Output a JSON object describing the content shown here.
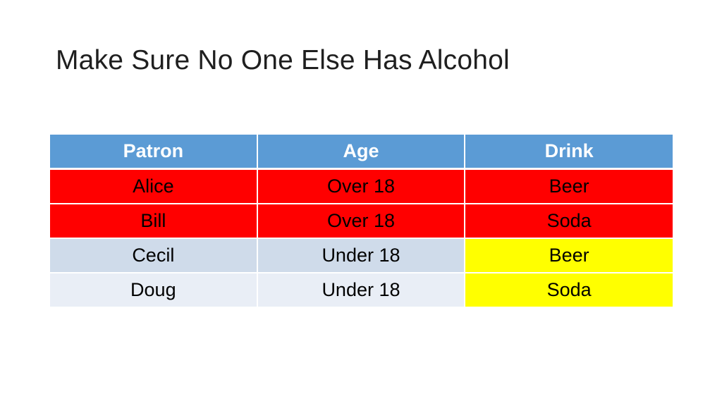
{
  "slide": {
    "title": "Make Sure No One Else Has Alcohol"
  },
  "colors": {
    "header": "#5b9bd5",
    "header_text": "#ffffff",
    "violation_red": "#ff0000",
    "check_yellow": "#ffff00",
    "band_dark": "#cfdbea",
    "band_light": "#e9eef6"
  },
  "table": {
    "headers": [
      "Patron",
      "Age",
      "Drink"
    ],
    "rows": [
      {
        "patron": "Alice",
        "age": "Over 18",
        "drink": "Beer",
        "row_color": "#ff0000",
        "drink_color": "#ff0000"
      },
      {
        "patron": "Bill",
        "age": "Over 18",
        "drink": "Soda",
        "row_color": "#ff0000",
        "drink_color": "#ff0000"
      },
      {
        "patron": "Cecil",
        "age": "Under 18",
        "drink": "Beer",
        "row_color": "#cfdbea",
        "drink_color": "#ffff00"
      },
      {
        "patron": "Doug",
        "age": "Under 18",
        "drink": "Soda",
        "row_color": "#e9eef6",
        "drink_color": "#ffff00"
      }
    ]
  }
}
